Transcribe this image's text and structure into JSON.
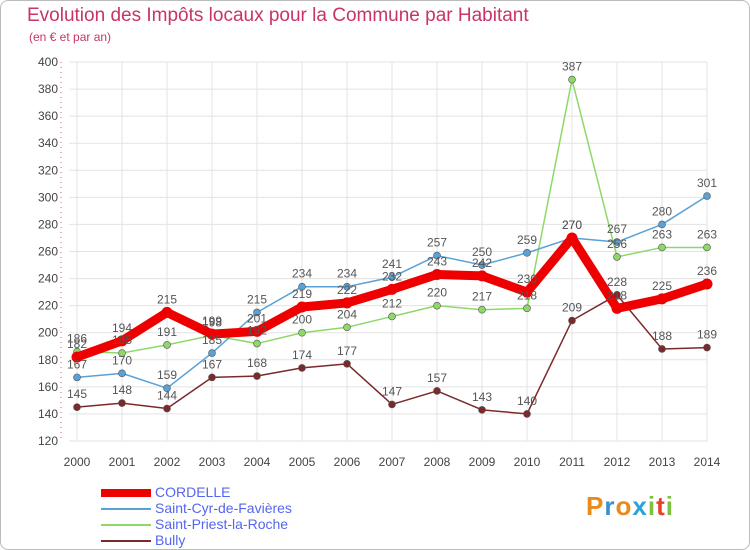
{
  "title": "Evolution des Impôts locaux pour la Commune par Habitant",
  "subtitle": "(en € et par an)",
  "logo": {
    "text": "Proxiti",
    "colors": [
      "#e98a1b",
      "#3a8fd1",
      "#e98a1b",
      "#2aa3d8",
      "#7cc242",
      "#e8402a",
      "#7cc242"
    ]
  },
  "chart_data": {
    "type": "line",
    "title": "Evolution des Impôts locaux pour la Commune par Habitant",
    "subtitle": "(en € et par an)",
    "xlabel": "",
    "ylabel": "",
    "x": [
      "2000",
      "2001",
      "2002",
      "2003",
      "2004",
      "2005",
      "2006",
      "2007",
      "2008",
      "2009",
      "2010",
      "2011",
      "2012",
      "2013",
      "2014"
    ],
    "ylim": [
      120,
      400
    ],
    "yticks": [
      120,
      140,
      160,
      180,
      200,
      220,
      240,
      260,
      280,
      300,
      320,
      340,
      360,
      380,
      400
    ],
    "grid": true,
    "legend_position": "bottom-left",
    "series": [
      {
        "name": "CORDELLE",
        "color": "#ee0000",
        "thick": true,
        "values": [
          182,
          194,
          215,
          199,
          201,
          219,
          222,
          232,
          243,
          242,
          230,
          270,
          218,
          225,
          236
        ]
      },
      {
        "name": "Saint-Cyr-de-Favières",
        "color": "#5aa1d6",
        "values": [
          167,
          170,
          159,
          185,
          215,
          234,
          234,
          241,
          257,
          250,
          259,
          270,
          267,
          280,
          301
        ]
      },
      {
        "name": "Saint-Priest-la-Roche",
        "color": "#8ed86a",
        "values": [
          186,
          185,
          191,
          198,
          192,
          200,
          204,
          212,
          220,
          217,
          218,
          387,
          256,
          263,
          263
        ]
      },
      {
        "name": "Bully",
        "color": "#7a2a2a",
        "values": [
          145,
          148,
          144,
          167,
          168,
          174,
          177,
          147,
          157,
          143,
          140,
          209,
          228,
          188,
          189
        ]
      }
    ]
  }
}
